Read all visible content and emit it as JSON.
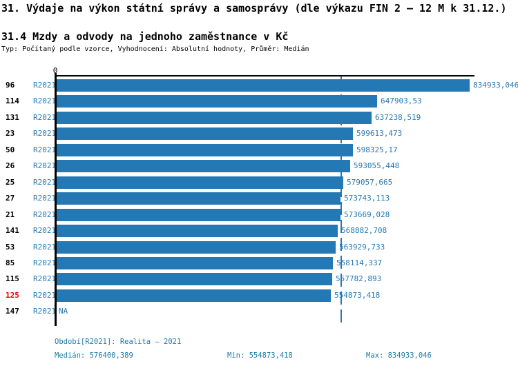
{
  "header": {
    "title": "31. Výdaje na výkon státní správy a samosprávy (dle výkazu FIN 2 – 12 M k 31.12.)",
    "subtitle": "31.4 Mzdy a odvody na jednoho zaměstnance v Kč",
    "meta": "Typ: Počítaný podle vzorce, Vyhodnocení: Absolutní hodnoty, Průměr: Medián"
  },
  "chart_data": {
    "type": "bar",
    "orientation": "horizontal",
    "axis_zero_label": "0",
    "period_label": "R2021",
    "categories": [
      "96",
      "114",
      "131",
      "23",
      "50",
      "26",
      "25",
      "27",
      "21",
      "141",
      "53",
      "85",
      "115",
      "125",
      "147"
    ],
    "values": [
      834933.046,
      647903.53,
      637238.519,
      599613.473,
      598325.17,
      593055.448,
      579057.665,
      573743.113,
      573669.028,
      568882.708,
      563929.733,
      558114.337,
      557782.893,
      554873.418,
      null
    ],
    "value_labels": [
      "834933,046",
      "647903,53",
      "637238,519",
      "599613,473",
      "598325,17",
      "593055,448",
      "579057,665",
      "573743,113",
      "573669,028",
      "568882,708",
      "563929,733",
      "558114,337",
      "557782,893",
      "554873,418",
      "NA"
    ],
    "highlighted_category": "125",
    "median_line_value": 576400.389,
    "xlim": [
      0,
      834933.046
    ],
    "grid": false,
    "legend": false,
    "colors": {
      "bar_blue": "#2478b4",
      "highlight_red": "#dd0000",
      "footer_teal": "#1e7ba9",
      "axis_black": "#000000"
    }
  },
  "footer": {
    "period": "Období[R2021]: Realita – 2021",
    "median": "Medián: 576400,389",
    "min": "Min: 554873,418",
    "max": "Max: 834933,046"
  }
}
